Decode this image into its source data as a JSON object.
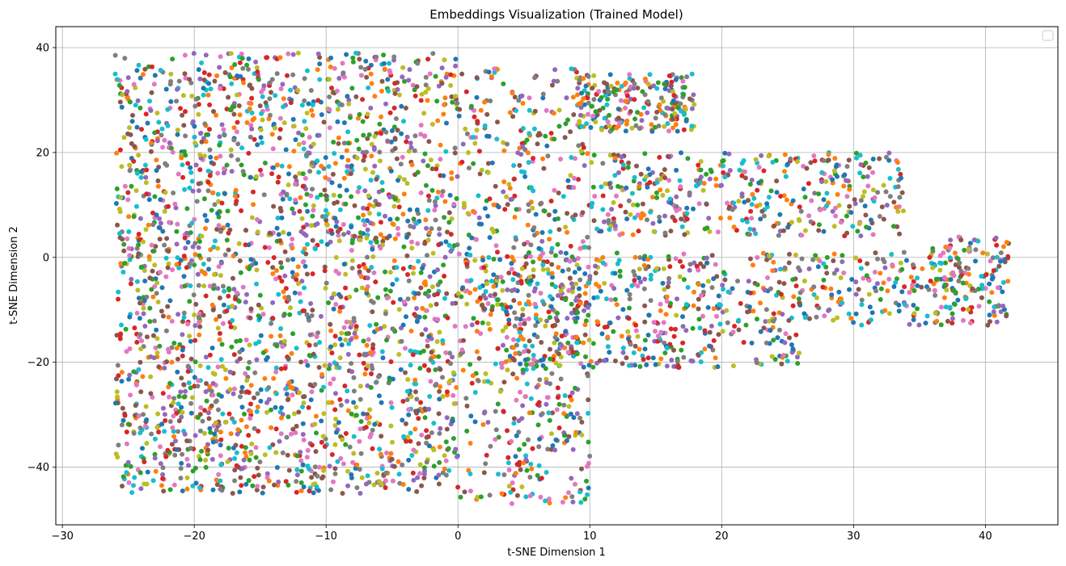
{
  "chart_data": {
    "type": "scatter",
    "title": "Embeddings Visualization (Trained Model)",
    "xlabel": "t-SNE Dimension 1",
    "ylabel": "t-SNE Dimension 2",
    "xlim": [
      -30.5,
      45.5
    ],
    "ylim": [
      -51,
      44
    ],
    "xticks": [
      -30,
      -20,
      -10,
      0,
      10,
      20,
      30,
      40
    ],
    "yticks": [
      -40,
      -20,
      0,
      20,
      40
    ],
    "grid": true,
    "legend": {
      "placement": "top-right",
      "entries": []
    },
    "palette": [
      "#1f77b4",
      "#ff7f0e",
      "#2ca02c",
      "#d62728",
      "#9467bd",
      "#8c564b",
      "#e377c2",
      "#7f7f7f",
      "#bcbd22",
      "#17becf"
    ],
    "clusters": [
      {
        "x": [
          -26,
          0
        ],
        "y": [
          -45,
          39
        ],
        "n": 2400
      },
      {
        "x": [
          0,
          10
        ],
        "y": [
          -47,
          36
        ],
        "n": 600
      },
      {
        "x": [
          9,
          18
        ],
        "y": [
          24,
          35
        ],
        "n": 220
      },
      {
        "x": [
          10,
          34
        ],
        "y": [
          4,
          20
        ],
        "n": 420
      },
      {
        "x": [
          0,
          39
        ],
        "y": [
          -13,
          1
        ],
        "n": 560
      },
      {
        "x": [
          3,
          26
        ],
        "y": [
          -21,
          -13
        ],
        "n": 220
      },
      {
        "x": [
          36,
          42
        ],
        "y": [
          -13,
          4
        ],
        "n": 120
      }
    ]
  }
}
